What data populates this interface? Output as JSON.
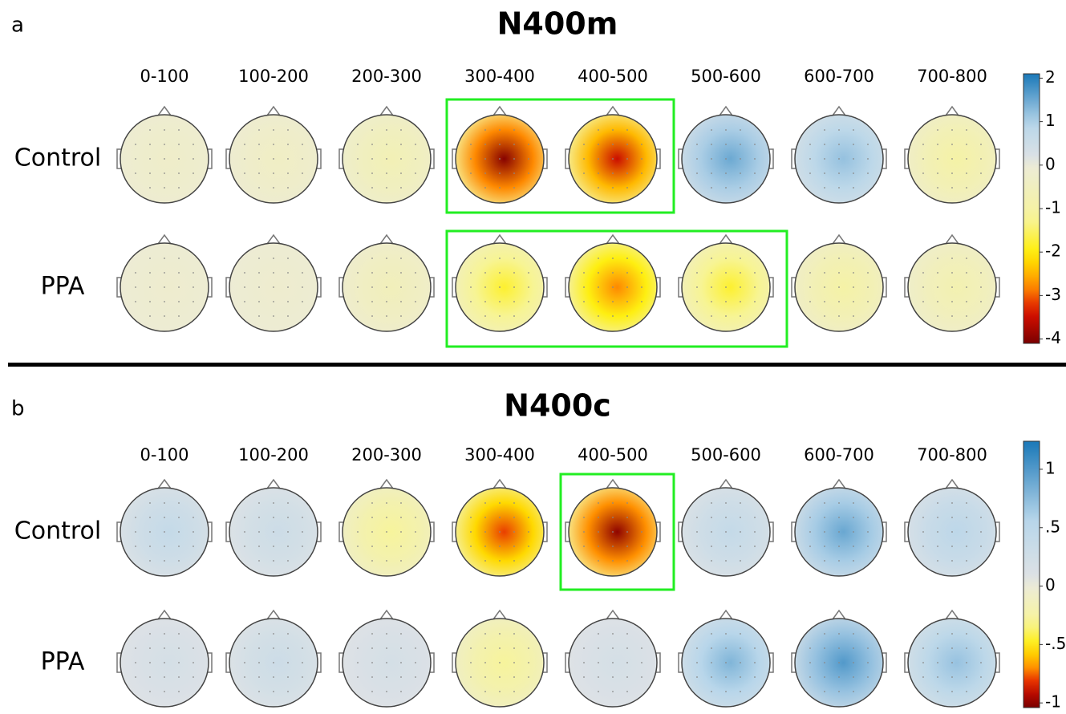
{
  "panels": [
    {
      "label": "a",
      "title": "N400m",
      "columns": [
        "0-100",
        "100-200",
        "200-300",
        "300-400",
        "400-500",
        "500-600",
        "600-700",
        "700-800"
      ],
      "rows": [
        {
          "name": "Control",
          "peaks": [
            -0.3,
            -0.4,
            -0.7,
            -4,
            -3.5,
            1.5,
            1.2,
            -1
          ]
        },
        {
          "name": "PPA",
          "peaks": [
            -0.2,
            -0.2,
            -0.6,
            -1.8,
            -2.8,
            -1.8,
            -1,
            -0.8
          ]
        }
      ],
      "colorbar": {
        "lim": [
          -4.1,
          2.1
        ],
        "ticks": [
          2,
          1,
          0,
          -1,
          -2,
          -3,
          -4
        ]
      }
    },
    {
      "label": "b",
      "title": "N400c",
      "columns": [
        "0-100",
        "100-200",
        "200-300",
        "300-400",
        "400-500",
        "500-600",
        "600-700",
        "700-800"
      ],
      "rows": [
        {
          "name": "Control",
          "peaks": [
            0.4,
            0.3,
            -0.3,
            -0.8,
            -1,
            0.4,
            0.9,
            0.5
          ]
        },
        {
          "name": "PPA",
          "peaks": [
            0.2,
            0.3,
            0.2,
            -0.3,
            0.2,
            0.8,
            1,
            0.7
          ]
        }
      ],
      "colorbar": {
        "lim": [
          -1.04,
          1.24
        ],
        "ticks": [
          1,
          {
            "value": 0.5,
            "label": ".5"
          },
          0,
          {
            "value": -0.5,
            "label": "-.5"
          },
          -1
        ]
      }
    }
  ]
}
